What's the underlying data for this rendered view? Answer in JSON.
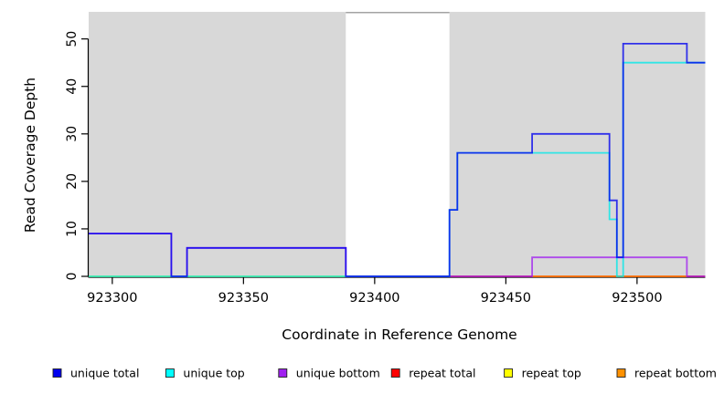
{
  "chart_data": {
    "type": "line",
    "step": true,
    "title": "",
    "xlabel": "Coordinate in Reference Genome",
    "ylabel": "Read Coverage Depth",
    "xlim": [
      923291,
      923526
    ],
    "ylim": [
      0,
      55.7
    ],
    "x_ticks": [
      923300,
      923350,
      923400,
      923450,
      923500
    ],
    "y_ticks": [
      0,
      10,
      20,
      30,
      40,
      50
    ],
    "grid": false,
    "legend_position": "bottom",
    "plot_background": {
      "masked_color": "#D8D8D8",
      "masked_regions": [
        {
          "x0": 923291,
          "x1": 923389
        },
        {
          "x0": 923428.5,
          "x1": 923526
        }
      ],
      "gap_region": {
        "x0": 923389,
        "x1": 923428.5,
        "color": "#FFFFFF"
      },
      "gap_top_border": {
        "x0": 923389,
        "x1": 923428.5,
        "color": "#A3A3A3"
      }
    },
    "axis_color": "#000000",
    "line_width": 1.8,
    "line_opacity": 0.78,
    "series": [
      {
        "name": "repeat top",
        "color": "#FFFF00",
        "points": [
          [
            923291,
            0
          ],
          [
            923389,
            0
          ]
        ]
      },
      {
        "name": "repeat total",
        "color": "#FF0000",
        "points": [
          [
            923389,
            0
          ],
          [
            923526,
            0
          ]
        ]
      },
      {
        "name": "repeat bottom",
        "color": "#FF9100",
        "points": [
          [
            923460,
            0
          ],
          [
            923519,
            0
          ]
        ]
      },
      {
        "name": "unique bottom",
        "color": "#A020F0",
        "points": [
          [
            923291,
            9
          ],
          [
            923322.5,
            9
          ],
          [
            923322.5,
            0
          ],
          [
            923328.5,
            0
          ],
          [
            923328.5,
            6
          ],
          [
            923389,
            6
          ],
          [
            923389,
            0
          ],
          [
            923460,
            0
          ],
          [
            923460,
            4
          ],
          [
            923519,
            4
          ],
          [
            923519,
            0
          ],
          [
            923526,
            0
          ]
        ]
      },
      {
        "name": "unique top",
        "color": "#00E8E8",
        "points": [
          [
            923291,
            0
          ],
          [
            923428.5,
            0
          ],
          [
            923428.5,
            14
          ],
          [
            923431.5,
            14
          ],
          [
            923431.5,
            26
          ],
          [
            923489.5,
            26
          ],
          [
            923489.5,
            12
          ],
          [
            923492.3,
            12
          ],
          [
            923492.3,
            0
          ],
          [
            923494.7,
            0
          ],
          [
            923494.7,
            45
          ],
          [
            923526,
            45
          ]
        ]
      },
      {
        "name": "unique total",
        "color": "#0000EE",
        "points": [
          [
            923291,
            9
          ],
          [
            923322.5,
            9
          ],
          [
            923322.5,
            0
          ],
          [
            923328.5,
            0
          ],
          [
            923328.5,
            6
          ],
          [
            923389,
            6
          ],
          [
            923389,
            0
          ],
          [
            923428.5,
            0
          ],
          [
            923428.5,
            14
          ],
          [
            923431.5,
            14
          ],
          [
            923431.5,
            26
          ],
          [
            923460,
            26
          ],
          [
            923460,
            30
          ],
          [
            923489.5,
            30
          ],
          [
            923489.5,
            16
          ],
          [
            923492.3,
            16
          ],
          [
            923492.3,
            4
          ],
          [
            923494.7,
            4
          ],
          [
            923494.7,
            49
          ],
          [
            923519,
            49
          ],
          [
            923519,
            45
          ],
          [
            923526,
            45
          ]
        ]
      }
    ],
    "legend": [
      {
        "label": "unique total",
        "color": "#0000EE"
      },
      {
        "label": "unique top",
        "color": "#00FFFF"
      },
      {
        "label": "unique bottom",
        "color": "#A020F0"
      },
      {
        "label": "repeat total",
        "color": "#FF0000"
      },
      {
        "label": "repeat top",
        "color": "#FFFF00"
      },
      {
        "label": "repeat bottom",
        "color": "#FF9100"
      }
    ]
  }
}
